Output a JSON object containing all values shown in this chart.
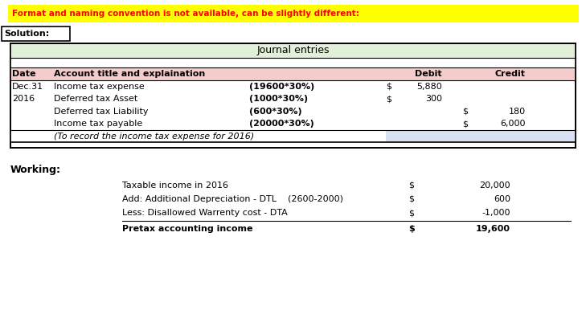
{
  "warning_text": "Format and naming convention is not available, can be slightly different:",
  "solution_label": "Solution:",
  "journal_title": "Journal entries",
  "journal_rows": [
    [
      "Dec.31",
      "Income tax expense",
      "(19600*30%)",
      "$",
      "5,880",
      "",
      ""
    ],
    [
      "2016",
      "Deferred tax Asset",
      "(1000*30%)",
      "$",
      "300",
      "",
      ""
    ],
    [
      "",
      "Deferred tax Liability",
      "(600*30%)",
      "",
      "",
      "$",
      "180"
    ],
    [
      "",
      "Income tax payable",
      "(20000*30%)",
      "",
      "",
      "$",
      "6,000"
    ],
    [
      "",
      "(To record the income tax expense for 2016)",
      "",
      "",
      "",
      "",
      ""
    ]
  ],
  "working_label": "Working:",
  "working_rows": [
    [
      "Taxable income in 2016",
      "",
      "$",
      "20,000",
      false
    ],
    [
      "Add: Additional Depreciation - DTL",
      "(2600-2000)",
      "$",
      "600",
      false
    ],
    [
      "Less: Disallowed Warrenty cost - DTA",
      "",
      "$",
      "-1,000",
      false
    ],
    [
      "Pretax accounting income",
      "",
      "$",
      "19,600",
      true
    ]
  ],
  "colors": {
    "warning_bg": "#FFFF00",
    "warning_text": "#FF0000",
    "solution_border": "#000000",
    "table_header_bg": "#F4CCCC",
    "table_title_bg": "#E2EFD9",
    "table_border": "#000000",
    "last_row_bg": "#D9E1F2",
    "white": "#FFFFFF",
    "black": "#000000"
  }
}
